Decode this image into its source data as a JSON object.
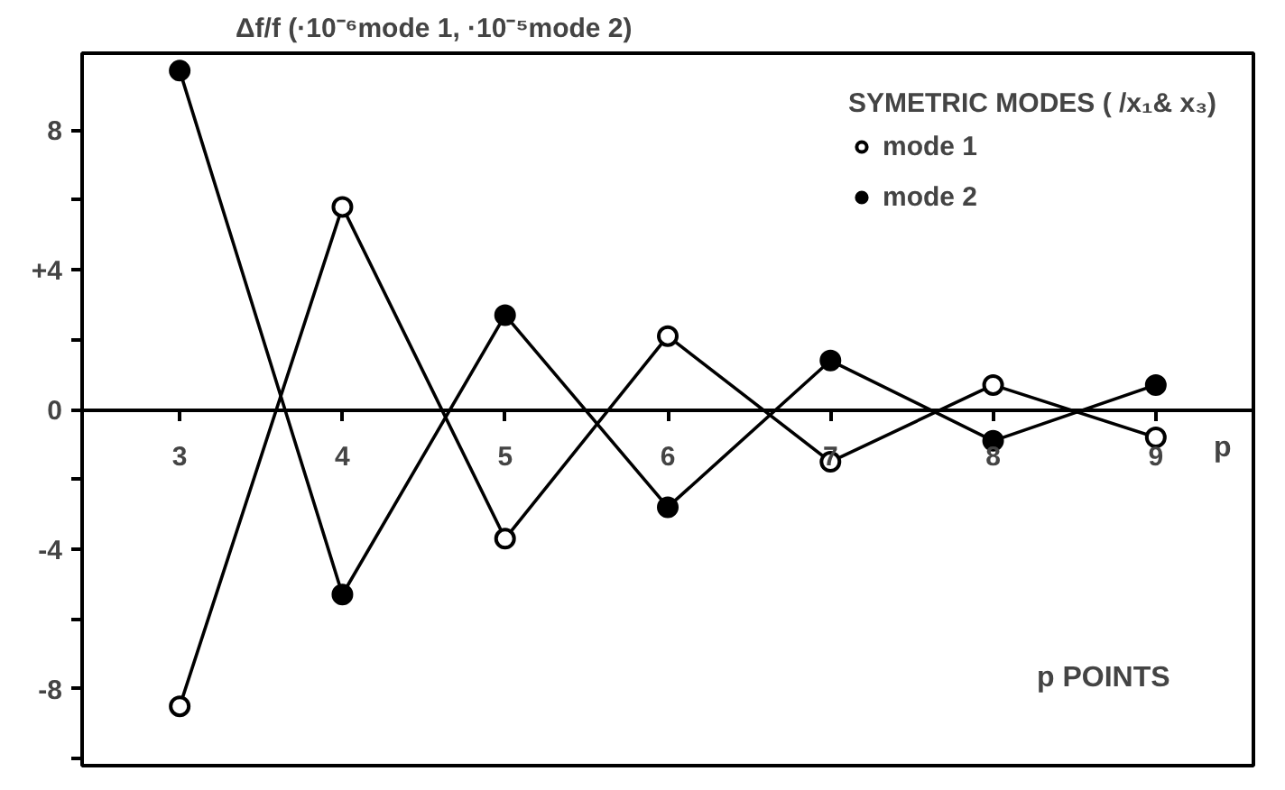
{
  "chart_data": {
    "type": "line",
    "ylabel": "Δf/f (·10⁻⁶mode 1, ·10⁻⁵mode 2)",
    "xlabel": "p",
    "legend_title": "SYMETRIC MODES ( /x₁& x₃)",
    "annotations": [
      "p POINTS"
    ],
    "x": [
      3,
      4,
      5,
      6,
      7,
      8,
      9
    ],
    "series": [
      {
        "name": "mode 1",
        "color": "#000000",
        "marker": "circle_open",
        "values": [
          -8.5,
          5.8,
          -3.7,
          2.1,
          -1.5,
          0.7,
          -0.8
        ]
      },
      {
        "name": "mode 2",
        "color": "#000000",
        "marker": "circle",
        "values": [
          9.7,
          -5.3,
          2.7,
          -2.8,
          1.4,
          -0.9,
          0.7
        ]
      }
    ],
    "xlim": [
      2.4,
      9.6
    ],
    "ylim": [
      -10.2,
      10.2
    ],
    "xticks": [
      3,
      4,
      5,
      6,
      7,
      8,
      9
    ],
    "yticks": [
      {
        "value": -10,
        "label": null
      },
      -8,
      {
        "value": -6,
        "label": null
      },
      -4,
      {
        "value": -2,
        "label": null
      },
      0,
      {
        "value": 2,
        "label": null
      },
      {
        "value": 4,
        "label": "+4"
      },
      {
        "value": 6,
        "label": null
      },
      8
    ],
    "grid": false,
    "legend": "top right",
    "line_style": "solid"
  }
}
